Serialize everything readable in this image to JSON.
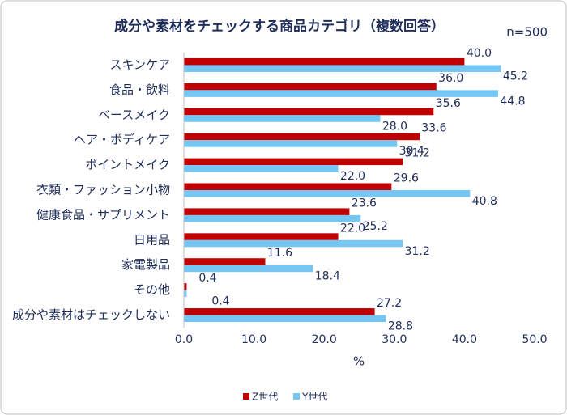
{
  "chart_data": {
    "type": "hbar",
    "title": "成分や素材をチェックする商品カテゴリ（複数回答）",
    "subtitle": "n=500",
    "x_label": "%",
    "categories": [
      "スキンケア",
      "食品・飲料",
      "ベースメイク",
      "ヘア・ボディケア",
      "ポイントメイク",
      "衣類・ファッション小物",
      "健康食品・サプリメント",
      "日用品",
      "家電製品",
      "その他",
      "成分や素材はチェックしない"
    ],
    "series": [
      {
        "name": "Z世代",
        "color": "#c00000",
        "values": [
          40.0,
          36.0,
          35.6,
          33.6,
          31.2,
          29.6,
          23.6,
          22.0,
          11.6,
          0.4,
          27.2
        ],
        "value_labels": [
          "40.0",
          "36.0",
          "35.6",
          "33.6",
          "31.2",
          "29.6",
          "23.6",
          "22.0",
          "11.6",
          "0.4",
          "27.2"
        ]
      },
      {
        "name": "Y世代",
        "color": "#75c6f3",
        "values": [
          45.2,
          44.8,
          28.0,
          30.4,
          22.0,
          40.8,
          25.2,
          31.2,
          18.4,
          0.4,
          28.8
        ],
        "value_labels": [
          "45.2",
          "44.8",
          "28.0",
          "30.4",
          "22.0",
          "40.8",
          "25.2",
          "31.2",
          "18.4",
          "0.4",
          "28.8"
        ]
      }
    ],
    "xlim": [
      0,
      50
    ],
    "xticks": [
      {
        "value": 0,
        "label": "0.0"
      },
      {
        "value": 10,
        "label": "10.0"
      },
      {
        "value": 20,
        "label": "20.0"
      },
      {
        "value": 30,
        "label": "30.0"
      },
      {
        "value": 40,
        "label": "40.0"
      },
      {
        "value": 50,
        "label": "50.0"
      }
    ],
    "grid": false,
    "legend": "bottom"
  }
}
